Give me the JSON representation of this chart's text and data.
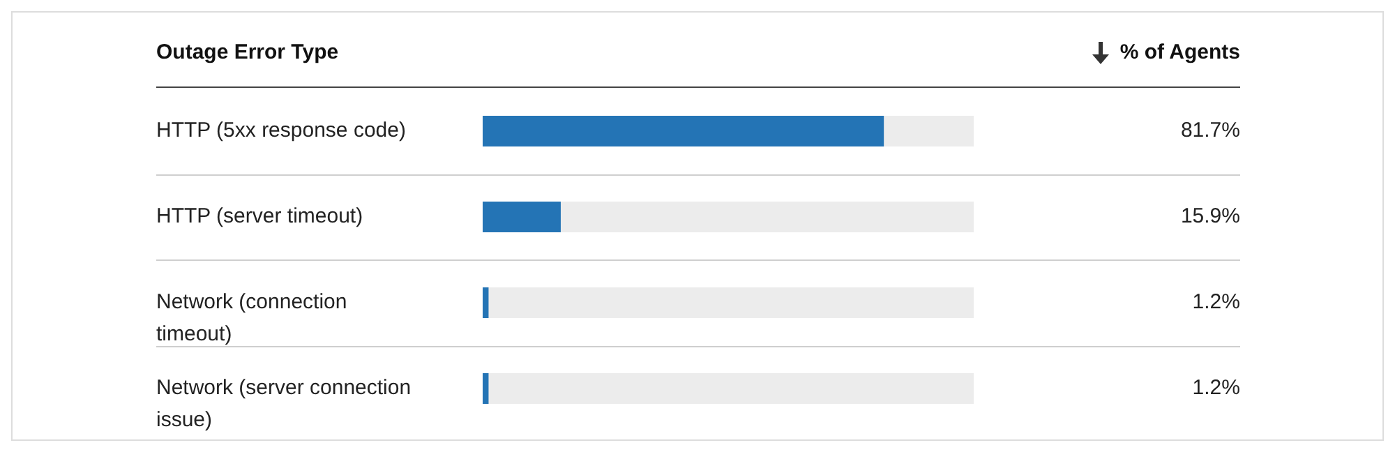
{
  "chart_data": {
    "type": "bar",
    "orientation": "horizontal",
    "annotations": [
      "Outage Error Type",
      "% of Agents"
    ],
    "categories": [
      "HTTP (5xx response code)",
      "HTTP (server timeout)",
      "Network (connection timeout)",
      "Network (server connection issue)"
    ],
    "values": [
      81.7,
      15.9,
      1.2,
      1.2
    ],
    "value_labels": [
      "81.7%",
      "15.9%",
      "1.2%",
      "1.2%"
    ],
    "color": "#2474b5",
    "xlim": [
      0,
      100
    ]
  }
}
